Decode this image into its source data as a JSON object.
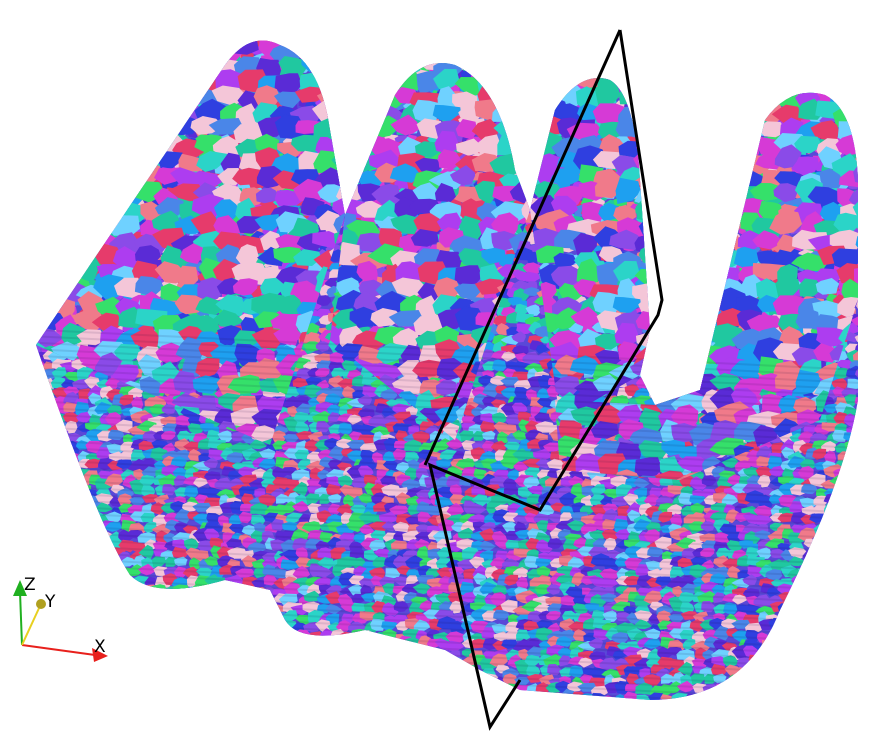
{
  "scene": {
    "background": "#ffffff",
    "subject": "grain-microstructure-zigzag-solid",
    "grain_palette": [
      "#5a2bd6",
      "#2f3fe0",
      "#4a86e8",
      "#2bd4c8",
      "#35e06a",
      "#d63ad6",
      "#e63b6b",
      "#f07a8a",
      "#f4c6d8",
      "#8a4be8",
      "#1ea0f0",
      "#ad3df0",
      "#6fd1ff",
      "#20c8a0"
    ],
    "cut_plane_color": "#000000"
  },
  "axes_triad": {
    "labels": {
      "z": "Z",
      "y": "Y",
      "x": "X"
    },
    "colors": {
      "x": "#e8201c",
      "y": "#e8d020",
      "z": "#20b020"
    }
  }
}
